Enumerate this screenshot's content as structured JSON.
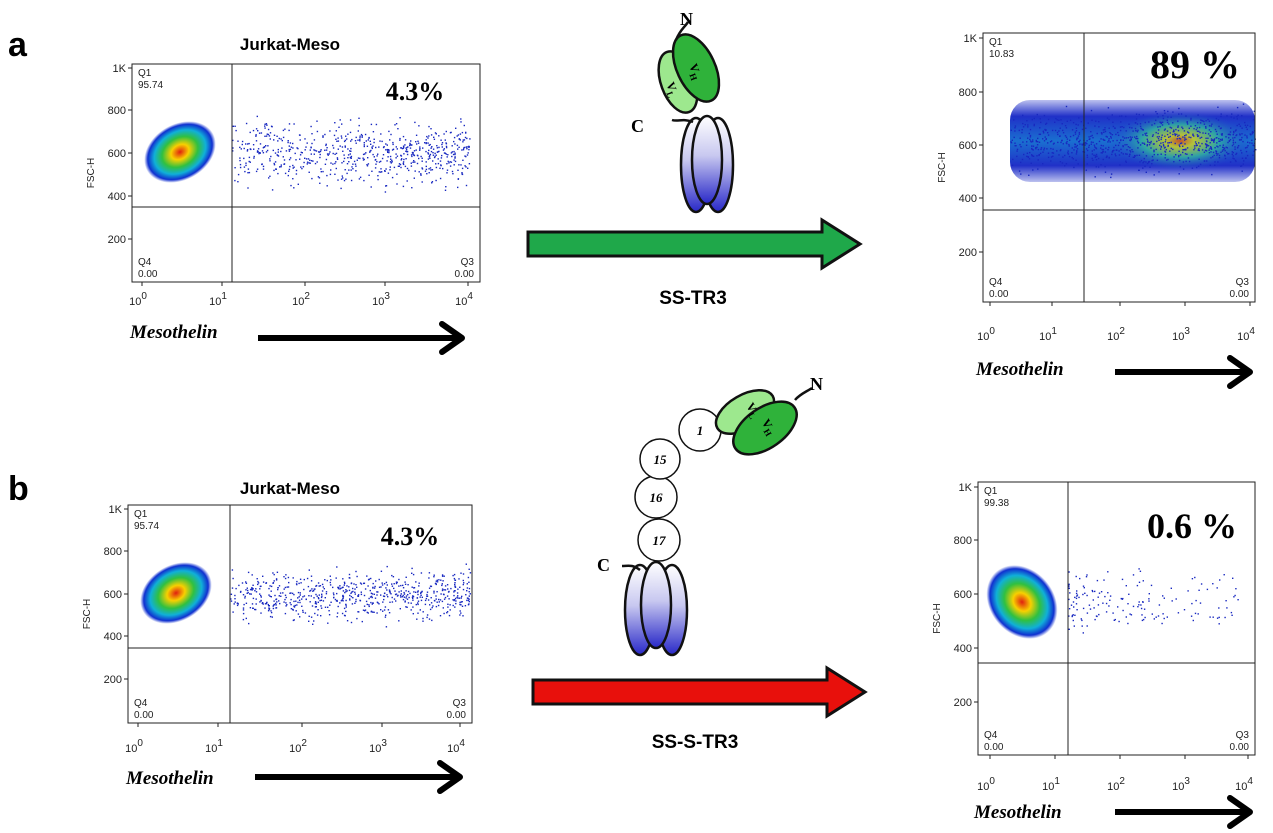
{
  "figure": {
    "panel_labels": [
      "a",
      "b"
    ],
    "plots": [
      {
        "title": "Jurkat-Meso",
        "y_label": "FSC-H",
        "percent": "4.3%",
        "q1": [
          "Q1",
          "95.74"
        ],
        "q4": [
          "Q4",
          "0.00"
        ],
        "q3": [
          "Q3",
          "0.00"
        ],
        "yticks": [
          "1K",
          "800",
          "600",
          "400",
          "200"
        ],
        "xticks": [
          {
            "base": "10",
            "exp": "0"
          },
          {
            "base": "10",
            "exp": "1"
          },
          {
            "base": "10",
            "exp": "2"
          },
          {
            "base": "10",
            "exp": "3"
          },
          {
            "base": "10",
            "exp": "4"
          }
        ],
        "x_label": "Mesothelin"
      },
      {
        "y_label": "FSC-H",
        "percent": "89 %",
        "q1": [
          "Q1",
          "10.83"
        ],
        "q4": [
          "Q4",
          "0.00"
        ],
        "q3": [
          "Q3",
          "0.00"
        ],
        "yticks": [
          "1K",
          "800",
          "600",
          "400",
          "200"
        ],
        "xticks": [
          {
            "base": "10",
            "exp": "0"
          },
          {
            "base": "10",
            "exp": "1"
          },
          {
            "base": "10",
            "exp": "2"
          },
          {
            "base": "10",
            "exp": "3"
          },
          {
            "base": "10",
            "exp": "4"
          }
        ],
        "x_label": "Mesothelin"
      },
      {
        "title": "Jurkat-Meso",
        "y_label": "FSC-H",
        "percent": "4.3%",
        "q1": [
          "Q1",
          "95.74"
        ],
        "q4": [
          "Q4",
          "0.00"
        ],
        "q3": [
          "Q3",
          "0.00"
        ],
        "yticks": [
          "1K",
          "800",
          "600",
          "400",
          "200"
        ],
        "xticks": [
          {
            "base": "10",
            "exp": "0"
          },
          {
            "base": "10",
            "exp": "1"
          },
          {
            "base": "10",
            "exp": "2"
          },
          {
            "base": "10",
            "exp": "3"
          },
          {
            "base": "10",
            "exp": "4"
          }
        ],
        "x_label": "Mesothelin"
      },
      {
        "y_label": "FSC-H",
        "percent": "0.6 %",
        "q1": [
          "Q1",
          "99.38"
        ],
        "q4": [
          "Q4",
          "0.00"
        ],
        "q3": [
          "Q3",
          "0.00"
        ],
        "yticks": [
          "1K",
          "800",
          "600",
          "400",
          "200"
        ],
        "xticks": [
          {
            "base": "10",
            "exp": "0"
          },
          {
            "base": "10",
            "exp": "1"
          },
          {
            "base": "10",
            "exp": "2"
          },
          {
            "base": "10",
            "exp": "3"
          },
          {
            "base": "10",
            "exp": "4"
          }
        ],
        "x_label": "Mesothelin"
      }
    ],
    "constructs": [
      {
        "n": "N",
        "c": "C",
        "vl": {
          "v": "V",
          "sub": "L"
        },
        "vh": {
          "v": "V",
          "sub": "H"
        },
        "arrow_label": "SS-TR3"
      },
      {
        "n": "N",
        "c": "C",
        "vl": {
          "v": "V",
          "sub": "L"
        },
        "vh": {
          "v": "V",
          "sub": "H"
        },
        "spacers": [
          "1",
          "15",
          "16",
          "17"
        ],
        "arrow_label": "SS-S-TR3"
      }
    ]
  }
}
